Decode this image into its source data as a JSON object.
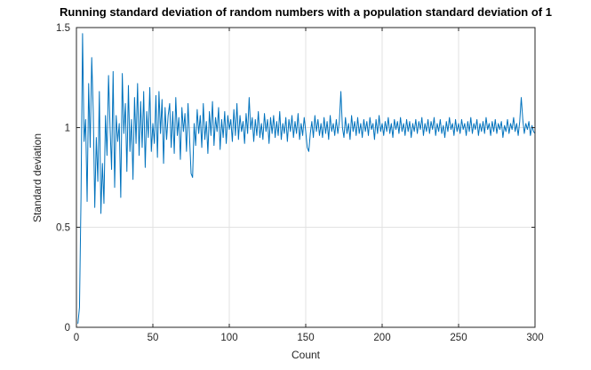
{
  "chart_data": {
    "type": "line",
    "title": "Running standard deviation of random numbers with a population standard deviation of 1",
    "xlabel": "Count",
    "ylabel": "Standard deviation",
    "xlim": [
      0,
      300
    ],
    "ylim": [
      0,
      1.5
    ],
    "xticks": [
      0,
      50,
      100,
      150,
      200,
      250,
      300
    ],
    "xtick_labels": [
      "0",
      "50",
      "100",
      "150",
      "200",
      "250",
      "300"
    ],
    "yticks": [
      0,
      0.5,
      1,
      1.5
    ],
    "ytick_labels": [
      "0",
      "0.5",
      "1",
      "1.5"
    ],
    "grid": true,
    "legend": "none",
    "colors": {
      "line": "#0072BD",
      "grid": "#e2e2e2",
      "axis": "#262626",
      "tick_text": "#262626",
      "title_text": "#000000",
      "background": "#ffffff"
    },
    "series": [
      {
        "name": "running-standard-deviation",
        "x_start": 1,
        "x_step": 1,
        "values": [
          0.02,
          0.1,
          0.65,
          1.47,
          0.93,
          1.04,
          0.63,
          1.22,
          0.9,
          1.35,
          1.08,
          0.6,
          0.95,
          0.73,
          1.18,
          0.57,
          0.82,
          0.62,
          1.06,
          0.86,
          1.26,
          1.0,
          0.79,
          1.28,
          0.7,
          1.06,
          0.93,
          1.02,
          0.65,
          1.27,
          0.97,
          1.12,
          0.78,
          1.21,
          0.88,
          1.04,
          0.74,
          1.15,
          0.92,
          1.22,
          0.86,
          1.13,
          0.9,
          1.18,
          0.8,
          1.08,
          0.95,
          1.2,
          0.88,
          1.02,
          0.92,
          1.16,
          0.85,
          1.18,
          0.97,
          1.14,
          0.82,
          1.1,
          0.94,
          1.06,
          1.12,
          0.9,
          1.08,
          0.87,
          1.15,
          0.96,
          1.05,
          0.84,
          1.1,
          0.98,
          1.07,
          0.88,
          1.12,
          0.95,
          0.77,
          0.75,
          1.02,
          0.91,
          1.09,
          0.97,
          1.06,
          0.9,
          1.12,
          0.94,
          1.03,
          0.87,
          1.08,
          0.96,
          1.13,
          0.91,
          1.05,
          0.98,
          1.1,
          0.89,
          1.04,
          0.95,
          1.08,
          0.92,
          1.06,
          0.99,
          1.04,
          0.93,
          1.09,
          0.96,
          1.12,
          0.94,
          1.06,
          0.98,
          1.03,
          0.92,
          1.07,
          0.97,
          1.15,
          0.99,
          1.05,
          0.93,
          1.04,
          0.96,
          1.08,
          0.95,
          1.02,
          0.94,
          1.07,
          0.98,
          1.04,
          0.92,
          1.05,
          0.97,
          1.06,
          0.95,
          1.03,
          0.96,
          1.08,
          0.94,
          1.02,
          0.97,
          1.05,
          0.93,
          1.04,
          0.98,
          1.06,
          0.95,
          1.03,
          0.97,
          1.07,
          0.94,
          1.02,
          0.96,
          1.05,
          0.98,
          0.9,
          0.88,
          0.97,
          1.03,
          0.95,
          1.06,
          0.98,
          1.04,
          0.96,
          1.02,
          0.95,
          1.05,
          0.97,
          1.03,
          0.94,
          1.06,
          0.98,
          1.02,
          0.96,
          1.04,
          0.97,
          1.03,
          1.18,
          1.0,
          0.95,
          1.05,
          0.97,
          1.02,
          0.94,
          1.06,
          0.98,
          1.03,
          0.96,
          1.05,
          0.97,
          1.02,
          0.95,
          1.04,
          0.98,
          1.03,
          0.96,
          1.05,
          0.99,
          1.02,
          0.94,
          1.04,
          0.97,
          1.06,
          0.98,
          1.02,
          0.96,
          1.03,
          0.98,
          1.05,
          0.97,
          1.02,
          0.95,
          1.04,
          0.99,
          1.03,
          0.97,
          1.05,
          0.98,
          1.02,
          0.96,
          1.04,
          0.98,
          1.03,
          0.95,
          1.02,
          0.98,
          1.04,
          0.97,
          1.03,
          0.99,
          1.05,
          0.96,
          1.02,
          0.98,
          1.04,
          0.97,
          1.03,
          0.99,
          1.05,
          0.96,
          1.02,
          0.98,
          1.04,
          0.97,
          1.01,
          0.95,
          1.03,
          0.98,
          1.05,
          0.99,
          1.02,
          0.96,
          1.04,
          0.98,
          1.02,
          0.97,
          1.04,
          0.99,
          1.02,
          0.96,
          1.03,
          0.98,
          1.05,
          0.97,
          1.02,
          0.99,
          1.04,
          0.96,
          1.02,
          0.98,
          1.03,
          0.97,
          1.05,
          0.99,
          1.02,
          0.96,
          1.03,
          0.98,
          1.04,
          0.97,
          1.02,
          0.99,
          1.03,
          0.95,
          1.01,
          0.98,
          1.04,
          0.97,
          1.02,
          0.99,
          1.05,
          0.98,
          1.02,
          0.96,
          1.03,
          1.15,
          1.04,
          0.97,
          1.02,
          0.99,
          1.03,
          0.96,
          1.01,
          0.98,
          0.97
        ]
      }
    ]
  }
}
